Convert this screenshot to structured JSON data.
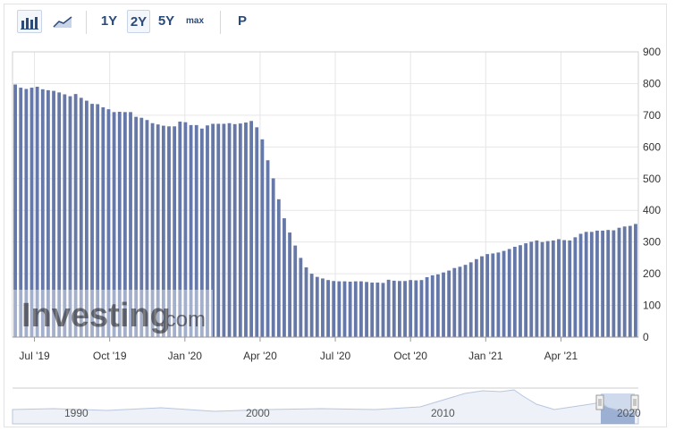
{
  "toolbar": {
    "buttons": [
      "1Y",
      "2Y",
      "5Y",
      "max",
      "P"
    ],
    "active": "2Y",
    "icons": [
      "bar-chart-icon",
      "line-chart-icon"
    ]
  },
  "watermark": {
    "text": "Investing",
    "suffix": ".com"
  },
  "colors": {
    "bar": "#6578a8",
    "grid": "#e6e6e6",
    "navigator_fill": "#dbe4f3",
    "navigator_line": "#b8c6de"
  },
  "chart_data": {
    "type": "bar",
    "title": "",
    "xlabel": "",
    "ylabel": "",
    "ylim": [
      0,
      900
    ],
    "yticks": [
      0,
      100,
      200,
      300,
      400,
      500,
      600,
      700,
      800,
      900
    ],
    "xtick_labels": [
      "Jul '19",
      "Oct '19",
      "Jan '20",
      "Apr '20",
      "Jul '20",
      "Oct '20",
      "Jan '21",
      "Apr '21"
    ],
    "grid": true,
    "values": [
      797,
      787,
      783,
      787,
      790,
      782,
      779,
      777,
      772,
      766,
      760,
      767,
      755,
      746,
      736,
      735,
      725,
      719,
      710,
      711,
      710,
      710,
      695,
      692,
      685,
      675,
      671,
      667,
      665,
      665,
      680,
      678,
      669,
      669,
      658,
      668,
      673,
      673,
      673,
      675,
      672,
      674,
      677,
      682,
      662,
      624,
      558,
      501,
      435,
      375,
      330,
      289,
      250,
      220,
      200,
      190,
      185,
      180,
      177,
      176,
      176,
      175,
      176,
      176,
      174,
      172,
      172,
      171,
      181,
      178,
      177,
      177,
      180,
      179,
      180,
      189,
      195,
      198,
      204,
      210,
      218,
      222,
      228,
      236,
      246,
      255,
      262,
      264,
      267,
      272,
      278,
      285,
      290,
      296,
      301,
      305,
      300,
      303,
      305,
      309,
      306,
      305,
      315,
      326,
      332,
      332,
      336,
      336,
      338,
      337,
      345,
      349,
      351,
      357
    ]
  },
  "navigator": {
    "labels": [
      "1990",
      "2000",
      "2010",
      "2020"
    ]
  }
}
